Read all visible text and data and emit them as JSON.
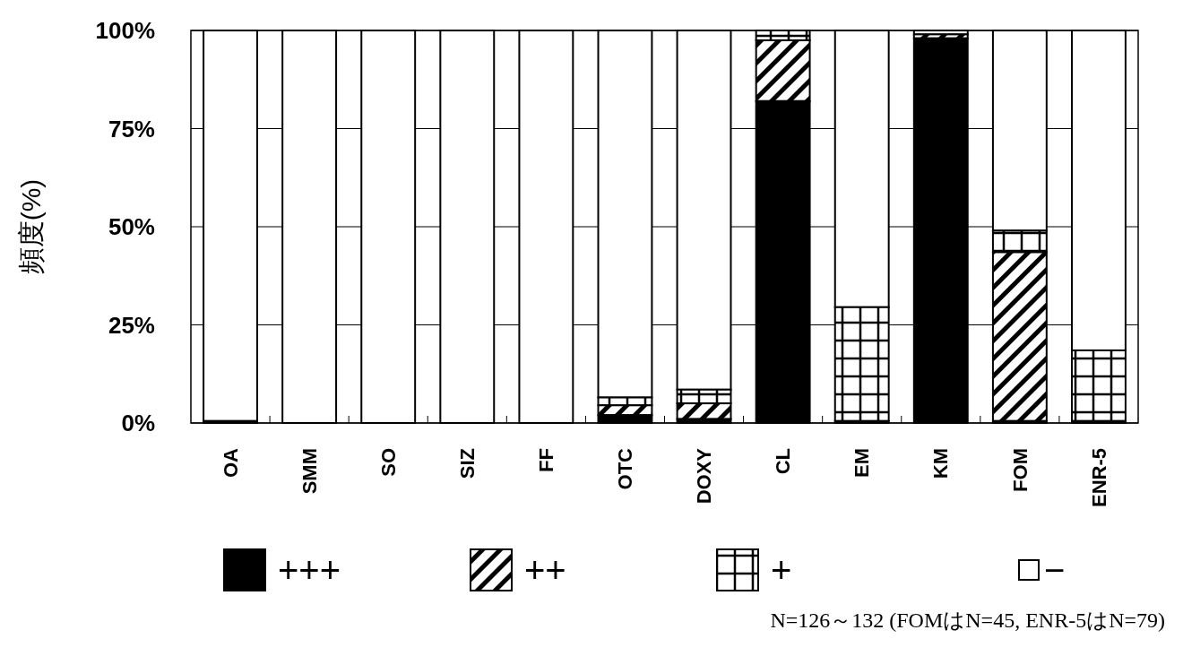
{
  "chart_data": {
    "type": "bar",
    "stacked": true,
    "ylabel": "頻度(%)",
    "categories": [
      "OA",
      "SMM",
      "SO",
      "SIZ",
      "FF",
      "OTC",
      "DOXY",
      "CL",
      "EM",
      "KM",
      "FOM",
      "ENR-5"
    ],
    "series": [
      {
        "name": "+++",
        "color": "#000000",
        "values": [
          0.5,
          0,
          0,
          0,
          0,
          2,
          1,
          82,
          0.5,
          98,
          0.5,
          0.5
        ]
      },
      {
        "name": "++",
        "color": "#000000",
        "values": [
          0,
          0,
          0,
          0,
          0,
          2.5,
          4,
          15.5,
          0,
          1,
          43,
          0
        ]
      },
      {
        "name": "+",
        "color": "#000000",
        "values": [
          0,
          0,
          0,
          0,
          0,
          2,
          3.5,
          2.5,
          29,
          0,
          5.5,
          18
        ]
      },
      {
        "name": "−",
        "color": "#ffffff",
        "values": [
          99.5,
          100,
          100,
          100,
          100,
          93.5,
          91.5,
          0,
          70.5,
          1,
          51,
          81.5
        ]
      }
    ],
    "ylim": [
      0,
      100
    ],
    "yticks": [
      {
        "value": 0,
        "label": "0%"
      },
      {
        "value": 25,
        "label": "25%"
      },
      {
        "value": 50,
        "label": "50%"
      },
      {
        "value": 75,
        "label": "75%"
      },
      {
        "value": 100,
        "label": "100%"
      }
    ],
    "grid": "y",
    "legend": "bottom",
    "annotations": [
      "N=126～132  (FOMはN=45,  ENR-5はN=79)"
    ]
  }
}
